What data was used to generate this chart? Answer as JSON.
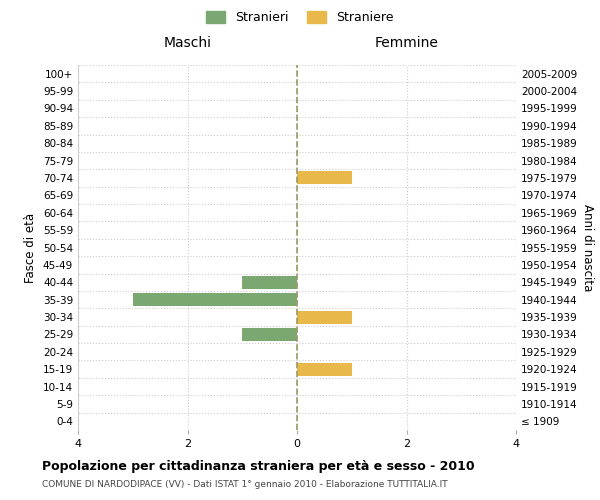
{
  "age_groups": [
    "100+",
    "95-99",
    "90-94",
    "85-89",
    "80-84",
    "75-79",
    "70-74",
    "65-69",
    "60-64",
    "55-59",
    "50-54",
    "45-49",
    "40-44",
    "35-39",
    "30-34",
    "25-29",
    "20-24",
    "15-19",
    "10-14",
    "5-9",
    "0-4"
  ],
  "birth_years": [
    "≤ 1909",
    "1910-1914",
    "1915-1919",
    "1920-1924",
    "1925-1929",
    "1930-1934",
    "1935-1939",
    "1940-1944",
    "1945-1949",
    "1950-1954",
    "1955-1959",
    "1960-1964",
    "1965-1969",
    "1970-1974",
    "1975-1979",
    "1980-1984",
    "1985-1989",
    "1990-1994",
    "1995-1999",
    "2000-2004",
    "2005-2009"
  ],
  "maschi": [
    0,
    0,
    0,
    0,
    0,
    0,
    0,
    0,
    0,
    0,
    0,
    0,
    -1,
    -3,
    0,
    -1,
    0,
    0,
    0,
    0,
    0
  ],
  "femmine": [
    0,
    0,
    0,
    0,
    0,
    0,
    1,
    0,
    0,
    0,
    0,
    0,
    0,
    0,
    1,
    0,
    0,
    1,
    0,
    0,
    0
  ],
  "color_maschi": "#7aA870",
  "color_femmine": "#E8B84B",
  "title": "Popolazione per cittadinanza straniera per età e sesso - 2010",
  "subtitle": "COMUNE DI NARDODIPACE (VV) - Dati ISTAT 1° gennaio 2010 - Elaborazione TUTTITALIA.IT",
  "xlabel_left": "Maschi",
  "xlabel_right": "Femmine",
  "ylabel_left": "Fasce di età",
  "ylabel_right": "Anni di nascita",
  "legend_maschi": "Stranieri",
  "legend_femmine": "Straniere",
  "xlim": [
    -4,
    4
  ],
  "xticks": [
    -4,
    -2,
    0,
    2,
    4
  ],
  "xticklabels": [
    "4",
    "2",
    "0",
    "2",
    "4"
  ],
  "bg_color": "#ffffff",
  "grid_color": "#cccccc",
  "bar_height": 0.75,
  "center_line_color": "#999966",
  "center_line_style": "--"
}
